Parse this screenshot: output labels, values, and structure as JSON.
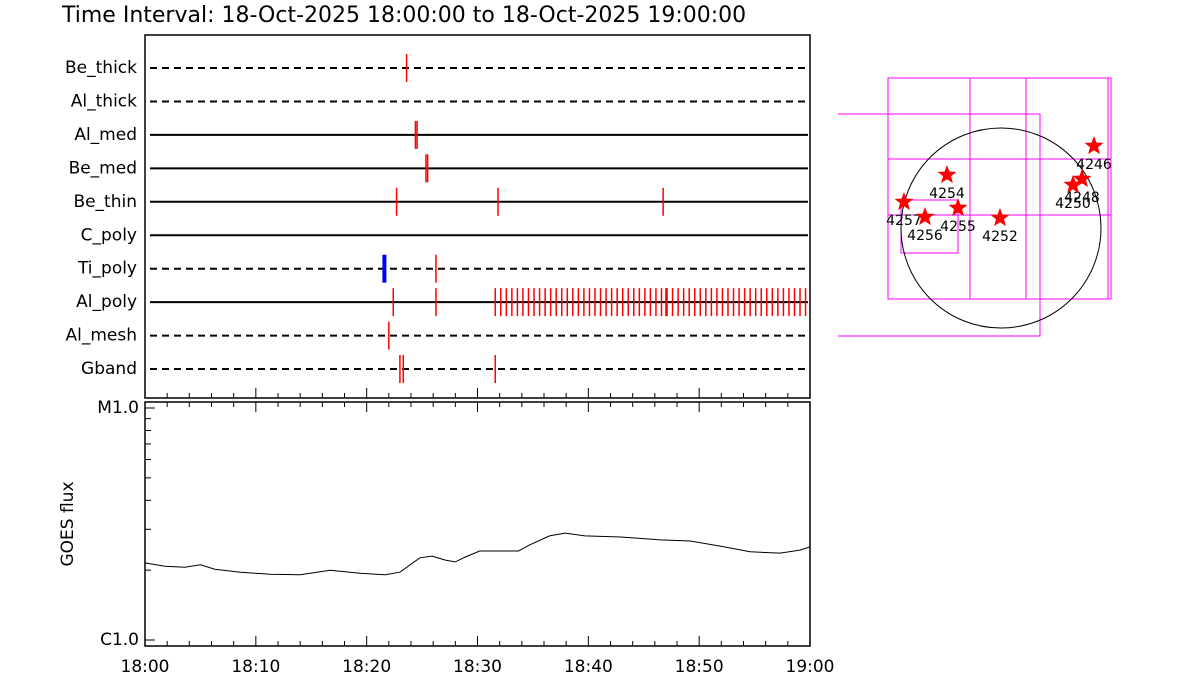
{
  "chart_data": [
    {
      "type": "timeline",
      "title": "Time Interval: 18-Oct-2025 18:00:00 to 18-Oct-2025 19:00:00",
      "xlim": [
        0,
        60
      ],
      "series": [
        {
          "name": "Be_thick",
          "line": "dashed",
          "color": "#ff0000",
          "values": [
            23.6
          ]
        },
        {
          "name": "Al_thick",
          "line": "dashed",
          "color": "#ff0000",
          "values": []
        },
        {
          "name": "Al_med",
          "line": "solid",
          "color": "#ff0000",
          "values": [
            24.4,
            24.55
          ]
        },
        {
          "name": "Be_med",
          "line": "solid",
          "color": "#ff0000",
          "values": [
            25.35,
            25.5
          ]
        },
        {
          "name": "Be_thin",
          "line": "solid",
          "color": "#ff0000",
          "values": [
            22.7,
            31.85,
            46.75
          ]
        },
        {
          "name": "C_poly",
          "line": "solid",
          "color": "#ff0000",
          "values": []
        },
        {
          "name": "Ti_poly",
          "line": "dashed",
          "color": "#ff0000",
          "colors": [
            "#0000ff",
            "#ff0000"
          ],
          "values": [
            21.6,
            26.25
          ]
        },
        {
          "name": "Al_poly",
          "line": "solid",
          "color": "#ff0000",
          "values": [
            22.4,
            26.25,
            31.6,
            32.1,
            32.6,
            33.1,
            33.6,
            34.1,
            34.6,
            35.1,
            35.6,
            36.1,
            36.6,
            37.1,
            37.6,
            38.1,
            38.6,
            39.1,
            39.6,
            40.1,
            40.6,
            41.1,
            41.6,
            42.1,
            42.6,
            43.1,
            43.6,
            44.1,
            44.6,
            45.1,
            45.6,
            46.1,
            46.6,
            47.0,
            47.1,
            47.6,
            48.1,
            48.6,
            49.1,
            49.6,
            50.1,
            50.6,
            51.1,
            51.6,
            52.1,
            52.6,
            53.1,
            53.6,
            54.1,
            54.6,
            55.1,
            55.6,
            56.1,
            56.6,
            57.1,
            57.6,
            58.1,
            58.6,
            59.1,
            59.6
          ]
        },
        {
          "name": "Al_mesh",
          "line": "dashed",
          "color": "#ff0000",
          "values": [
            22.0
          ]
        },
        {
          "name": "Gband",
          "line": "dashed",
          "color": "#ff0000",
          "values": [
            23.0,
            23.3,
            31.6
          ]
        }
      ]
    },
    {
      "type": "line",
      "y_label": "GOES flux",
      "log_y": true,
      "color": "#000000",
      "x": [
        0,
        1.8,
        3.6,
        5.0,
        6.3,
        8.6,
        11.3,
        14.0,
        16.7,
        19.4,
        21.7,
        23.0,
        24.8,
        25.9,
        27.1,
        28.0,
        28.9,
        30.2,
        32.0,
        33.7,
        34.7,
        36.5,
        37.9,
        39.7,
        42.9,
        46.5,
        49.2,
        51.9,
        54.6,
        57.3,
        59.1,
        60
      ],
      "values": [
        2.15e-06,
        2.08e-06,
        2.06e-06,
        2.11e-06,
        2.02e-06,
        1.96e-06,
        1.92e-06,
        1.91e-06,
        2e-06,
        1.94e-06,
        1.91e-06,
        1.96e-06,
        2.26e-06,
        2.3e-06,
        2.21e-06,
        2.17e-06,
        2.28e-06,
        2.42e-06,
        2.42e-06,
        2.42e-06,
        2.57e-06,
        2.81e-06,
        2.89e-06,
        2.81e-06,
        2.78e-06,
        2.7e-06,
        2.67e-06,
        2.54e-06,
        2.4e-06,
        2.37e-06,
        2.44e-06,
        2.52e-06
      ],
      "xlim": [
        0,
        60
      ],
      "xticks": [
        {
          "value": 0,
          "label": "18:00"
        },
        {
          "value": 10,
          "label": "18:10"
        },
        {
          "value": 20,
          "label": "18:20"
        },
        {
          "value": 30,
          "label": "18:30"
        },
        {
          "value": 40,
          "label": "18:40"
        },
        {
          "value": 50,
          "label": "18:50"
        },
        {
          "value": 60,
          "label": "19:00"
        }
      ],
      "xminor": [
        2,
        4,
        6,
        8,
        12,
        14,
        16,
        18,
        22,
        24,
        26,
        28,
        32,
        34,
        36,
        38,
        42,
        44,
        46,
        48,
        52,
        54,
        56,
        58
      ],
      "ylim": [
        1e-06,
        1e-05
      ],
      "yticks": [
        {
          "value": 1e-06,
          "label": "C1.0"
        },
        {
          "value": 1e-05,
          "label": "M1.0"
        }
      ],
      "yminor": [
        2e-06,
        3e-06,
        4e-06,
        5e-06,
        6e-06,
        7e-06,
        8e-06,
        9e-06
      ]
    },
    {
      "type": "map",
      "color": "#ff0000",
      "labels": [
        "4246",
        "4248",
        "4250",
        "4254",
        "4257",
        "4256",
        "4255",
        "4252"
      ],
      "x": [
        0.93,
        0.81,
        0.72,
        -0.54,
        -0.97,
        -0.76,
        -0.43,
        -0.01
      ],
      "y": [
        0.82,
        0.49,
        0.43,
        0.53,
        0.26,
        0.11,
        0.2,
        0.1
      ]
    }
  ]
}
